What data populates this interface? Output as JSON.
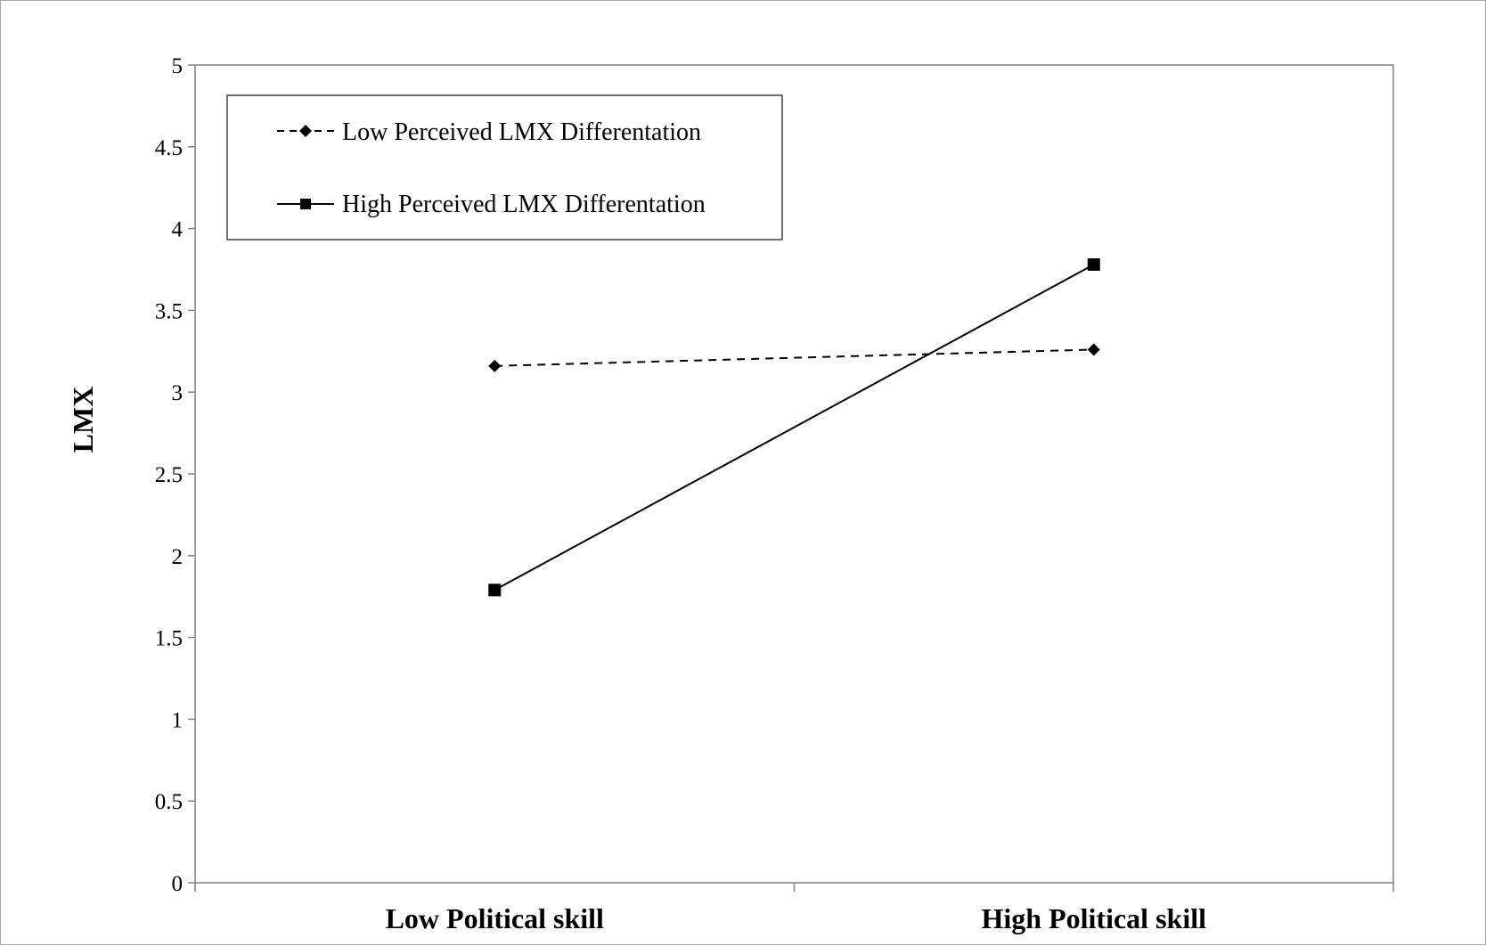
{
  "chart_data": {
    "type": "line",
    "categories": [
      "Low Political skill",
      "High Political skill"
    ],
    "ylabel": "LMX",
    "xlabel": "",
    "ylim": [
      0,
      5
    ],
    "y_ticks": [
      "0",
      "0.5",
      "1",
      "1.5",
      "2",
      "2.5",
      "3",
      "3.5",
      "4",
      "4.5",
      "5"
    ],
    "grid": false,
    "legend_position": "top-left",
    "series": [
      {
        "name": "Low Perceived LMX Differentation",
        "values": [
          3.16,
          3.26
        ],
        "line_style": "dashed",
        "marker": "diamond",
        "color": "#000000"
      },
      {
        "name": "High Perceived LMX Differentation",
        "values": [
          1.79,
          3.78
        ],
        "line_style": "solid",
        "marker": "square",
        "color": "#000000"
      }
    ]
  }
}
